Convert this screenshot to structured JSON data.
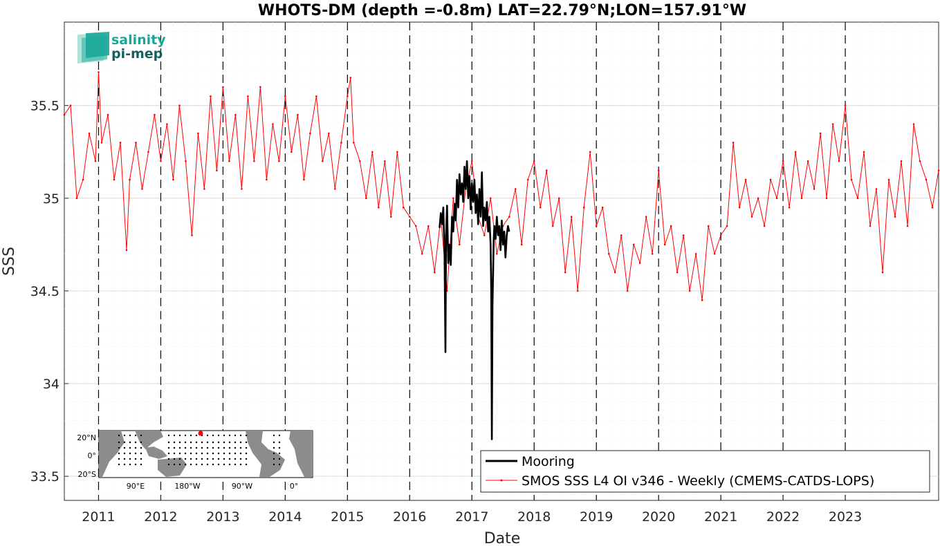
{
  "chart_data": {
    "type": "line",
    "title": "WHOTS-DM (depth =-0.8m) LAT=22.79°N;LON=157.91°W",
    "xlabel": "Date",
    "ylabel": "SSS",
    "xlim": [
      2010.45,
      2024.5
    ],
    "ylim": [
      33.37,
      35.95
    ],
    "x_ticks": [
      2011,
      2012,
      2013,
      2014,
      2015,
      2016,
      2017,
      2018,
      2019,
      2020,
      2021,
      2022,
      2023
    ],
    "x_tick_labels": [
      "2011",
      "2012",
      "2013",
      "2014",
      "2015",
      "2016",
      "2017",
      "2018",
      "2019",
      "2020",
      "2021",
      "2022",
      "2023"
    ],
    "y_ticks": [
      33.5,
      34,
      34.5,
      35,
      35.5
    ],
    "y_tick_labels": [
      "33.5",
      "34",
      "34.5",
      "35",
      "35.5"
    ],
    "grid": true,
    "year_markers": [
      2011,
      2012,
      2013,
      2014,
      2015,
      2016,
      2017,
      2018,
      2019,
      2020,
      2021,
      2022,
      2023
    ],
    "legend": {
      "placement": "bottom-right",
      "entries": [
        "Mooring",
        "SMOS SSS L4 OI v346 - Weekly (CMEMS-CATDS-LOPS)"
      ]
    },
    "series": [
      {
        "name": "Mooring",
        "color": "#000000",
        "x": [
          2016.48,
          2016.5,
          2016.52,
          2016.54,
          2016.56,
          2016.575,
          2016.585,
          2016.6,
          2016.62,
          2016.64,
          2016.66,
          2016.68,
          2016.7,
          2016.72,
          2016.74,
          2016.76,
          2016.78,
          2016.8,
          2016.82,
          2016.84,
          2016.86,
          2016.88,
          2016.9,
          2016.92,
          2016.94,
          2016.96,
          2016.98,
          2017.0,
          2017.02,
          2017.04,
          2017.06,
          2017.08,
          2017.1,
          2017.12,
          2017.14,
          2017.16,
          2017.18,
          2017.2,
          2017.22,
          2017.24,
          2017.26,
          2017.28,
          2017.3,
          2017.31,
          2017.32,
          2017.33,
          2017.34,
          2017.35,
          2017.36,
          2017.38,
          2017.4,
          2017.42,
          2017.44,
          2017.46,
          2017.48,
          2017.5,
          2017.52,
          2017.54,
          2017.56,
          2017.58,
          2017.6
        ],
        "y": [
          34.84,
          34.92,
          34.86,
          34.95,
          34.7,
          34.17,
          34.8,
          34.96,
          34.65,
          34.75,
          34.64,
          34.9,
          34.82,
          34.97,
          34.88,
          35.1,
          34.95,
          35.13,
          35.02,
          35.08,
          34.98,
          35.17,
          35.05,
          35.2,
          35.0,
          35.12,
          34.94,
          35.08,
          34.98,
          35.1,
          34.92,
          35.02,
          34.86,
          35.05,
          34.9,
          35.14,
          34.85,
          34.95,
          34.88,
          34.98,
          34.82,
          34.9,
          34.75,
          34.5,
          33.7,
          34.42,
          34.6,
          34.78,
          34.85,
          34.78,
          34.9,
          34.8,
          34.85,
          34.72,
          34.88,
          34.75,
          34.82,
          34.68,
          34.8,
          34.85,
          34.82
        ]
      },
      {
        "name": "SMOS SSS L4 OI v346 - Weekly (CMEMS-CATDS-LOPS)",
        "color": "#ff0000",
        "x": [
          2010.45,
          2010.55,
          2010.65,
          2010.75,
          2010.85,
          2010.95,
          2011.0,
          2011.05,
          2011.15,
          2011.25,
          2011.35,
          2011.45,
          2011.5,
          2011.6,
          2011.7,
          2011.8,
          2011.9,
          2012.0,
          2012.1,
          2012.2,
          2012.3,
          2012.4,
          2012.5,
          2012.6,
          2012.7,
          2012.8,
          2012.9,
          2013.0,
          2013.1,
          2013.2,
          2013.3,
          2013.4,
          2013.5,
          2013.6,
          2013.7,
          2013.8,
          2013.9,
          2014.0,
          2014.1,
          2014.2,
          2014.3,
          2014.4,
          2014.5,
          2014.6,
          2014.7,
          2014.8,
          2014.9,
          2015.0,
          2015.05,
          2015.1,
          2015.2,
          2015.3,
          2015.4,
          2015.5,
          2015.6,
          2015.7,
          2015.8,
          2015.9,
          2016.0,
          2016.1,
          2016.2,
          2016.3,
          2016.4,
          2016.5,
          2016.6,
          2016.7,
          2016.8,
          2016.9,
          2017.0,
          2017.1,
          2017.2,
          2017.3,
          2017.4,
          2017.5,
          2017.6,
          2017.7,
          2017.8,
          2017.9,
          2018.0,
          2018.1,
          2018.2,
          2018.3,
          2018.4,
          2018.5,
          2018.6,
          2018.7,
          2018.8,
          2018.9,
          2019.0,
          2019.1,
          2019.2,
          2019.3,
          2019.4,
          2019.5,
          2019.6,
          2019.7,
          2019.8,
          2019.9,
          2020.0,
          2020.1,
          2020.2,
          2020.3,
          2020.4,
          2020.5,
          2020.6,
          2020.7,
          2020.8,
          2020.9,
          2021.0,
          2021.1,
          2021.2,
          2021.3,
          2021.4,
          2021.5,
          2021.6,
          2021.7,
          2021.8,
          2021.9,
          2022.0,
          2022.1,
          2022.2,
          2022.3,
          2022.4,
          2022.5,
          2022.6,
          2022.7,
          2022.8,
          2022.9,
          2023.0,
          2023.1,
          2023.2,
          2023.3,
          2023.4,
          2023.5,
          2023.6,
          2023.7,
          2023.8,
          2023.9,
          2024.0,
          2024.1,
          2024.2,
          2024.3,
          2024.4,
          2024.5
        ],
        "y": [
          35.45,
          35.5,
          35.0,
          35.1,
          35.35,
          35.2,
          35.68,
          35.3,
          35.45,
          35.1,
          35.3,
          34.72,
          35.1,
          35.3,
          35.05,
          35.25,
          35.45,
          35.2,
          35.4,
          35.1,
          35.5,
          35.2,
          34.8,
          35.35,
          35.05,
          35.55,
          35.15,
          35.6,
          35.2,
          35.45,
          35.05,
          35.55,
          35.2,
          35.6,
          35.1,
          35.4,
          35.2,
          35.55,
          35.25,
          35.45,
          35.1,
          35.35,
          35.55,
          35.2,
          35.35,
          35.05,
          35.3,
          35.55,
          35.65,
          35.3,
          35.2,
          35.0,
          35.25,
          34.95,
          35.2,
          34.9,
          35.25,
          34.95,
          34.9,
          34.85,
          34.7,
          34.85,
          34.6,
          34.9,
          34.5,
          35.0,
          34.75,
          35.05,
          35.2,
          34.9,
          34.8,
          35.0,
          34.7,
          34.85,
          34.9,
          35.05,
          34.75,
          35.1,
          35.2,
          34.95,
          35.15,
          34.85,
          35.0,
          34.6,
          34.9,
          34.5,
          34.95,
          35.25,
          34.85,
          34.95,
          34.7,
          34.6,
          34.8,
          34.5,
          34.75,
          34.65,
          34.9,
          34.7,
          35.15,
          34.75,
          34.85,
          34.6,
          34.8,
          34.5,
          34.7,
          34.45,
          34.85,
          34.7,
          34.8,
          34.85,
          35.3,
          34.95,
          35.1,
          34.9,
          35.0,
          34.85,
          35.1,
          35.0,
          35.2,
          34.95,
          35.25,
          35.0,
          35.2,
          35.05,
          35.35,
          35.0,
          35.4,
          35.2,
          35.5,
          35.1,
          35.0,
          35.25,
          34.85,
          35.05,
          34.6,
          35.1,
          34.9,
          35.2,
          34.85,
          35.4,
          35.2,
          35.1,
          34.95,
          35.15
        ]
      }
    ],
    "inset_map": {
      "lat_labels": [
        "20°N",
        "0°",
        "20°S"
      ],
      "lon_labels": [
        "90°E",
        "180°W",
        "90°W",
        "0°"
      ]
    }
  },
  "logo": {
    "line1": "salinity",
    "line2": "pi-mep"
  },
  "colors": {
    "mooring": "#000000",
    "smos": "#ff0000",
    "grid": "#d9d9d9",
    "logo_teal": "#1aa79a",
    "logo_dark": "#12615c",
    "land": "#8c8c8c"
  }
}
